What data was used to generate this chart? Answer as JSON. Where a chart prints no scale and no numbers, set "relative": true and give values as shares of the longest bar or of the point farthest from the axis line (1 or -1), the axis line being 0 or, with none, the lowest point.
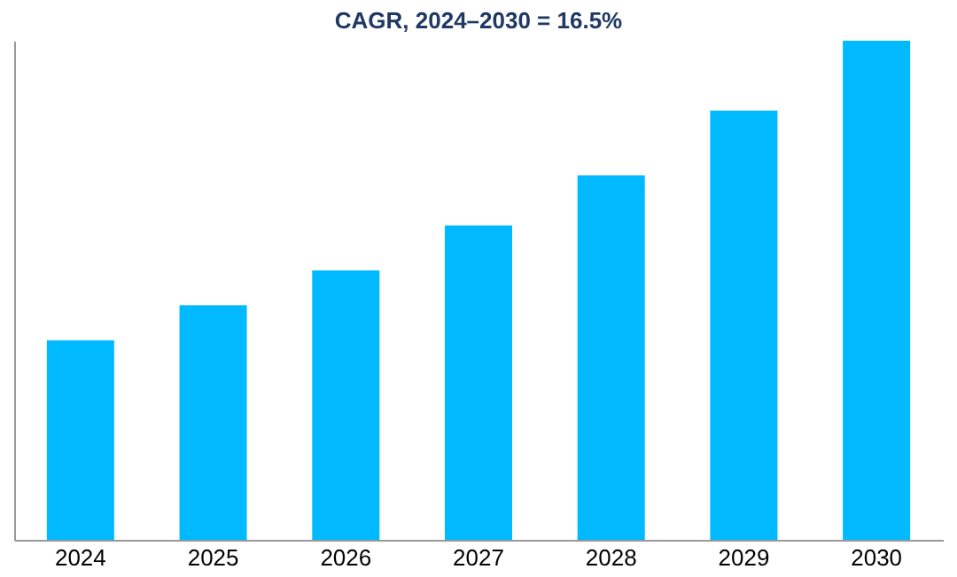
{
  "chart_data": {
    "type": "bar",
    "title": "CAGR, 2024–2030 = 16.5%",
    "categories": [
      "2024",
      "2025",
      "2026",
      "2027",
      "2028",
      "2029",
      "2030"
    ],
    "values": [
      0.4,
      0.47,
      0.54,
      0.63,
      0.73,
      0.86,
      1
    ],
    "color": "#00b9ff",
    "relative": true
  }
}
